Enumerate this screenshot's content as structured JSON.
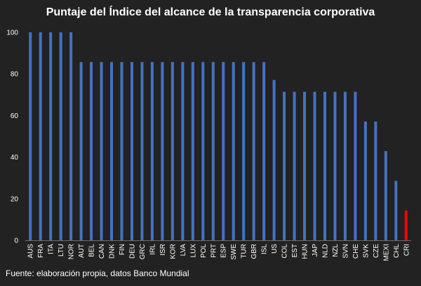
{
  "chart_data": {
    "type": "bar",
    "title": "Puntaje del Índice del alcance de la transparencia corporativa",
    "categories": [
      "AUS",
      "FRA",
      "ITA",
      "LTU",
      "NOR",
      "AUT",
      "BEL",
      "CAN",
      "DNK",
      "FIN",
      "DEU",
      "GRC",
      "IRL",
      "ISR",
      "KOR",
      "LVA",
      "LUX",
      "POL",
      "PRT",
      "ESP",
      "SWE",
      "TUR",
      "GBR",
      "ISL",
      "US",
      "COL",
      "EST",
      "HUN",
      "JAP",
      "NLD",
      "NZL",
      "SVN",
      "CHE",
      "SVK",
      "CZE",
      "MEXI",
      "CHL",
      "CRI"
    ],
    "values": [
      100,
      100,
      100,
      100,
      100,
      85.7,
      85.7,
      85.7,
      85.7,
      85.7,
      85.7,
      85.7,
      85.7,
      85.7,
      85.7,
      85.7,
      85.7,
      85.7,
      85.7,
      85.7,
      85.7,
      85.7,
      85.7,
      85.7,
      77.1,
      71.4,
      71.4,
      71.4,
      71.4,
      71.4,
      71.4,
      71.4,
      71.4,
      57.1,
      57.1,
      42.9,
      28.6,
      14.3
    ],
    "y_ticks": [
      0,
      20,
      40,
      60,
      80,
      100
    ],
    "ylim": [
      0,
      100
    ],
    "grid": false,
    "colors": {
      "default": "#4472C4",
      "highlight": "#FF0000",
      "background": "#222222"
    },
    "highlight_category": "CRI"
  },
  "source": "Fuente: elaboración propia, datos Banco Mundial"
}
